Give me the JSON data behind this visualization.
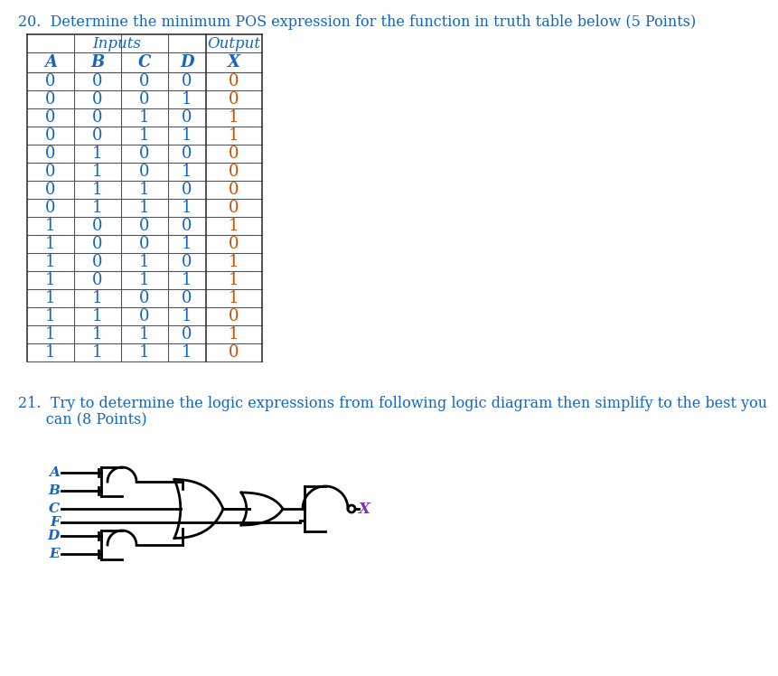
{
  "title_q20": "20.  Determine the minimum POS expression for the function in truth table below (5 Points)",
  "title_q21_line1": "21.  Try to determine the logic expressions from following logic diagram then simplify to the best you",
  "title_q21_line2": "      can (8 Points)",
  "table_headers": [
    "A",
    "B",
    "C",
    "D",
    "X"
  ],
  "table_group_header_inputs": "Inputs",
  "table_group_header_output": "Output",
  "truth_table": [
    [
      0,
      0,
      0,
      0,
      0
    ],
    [
      0,
      0,
      0,
      1,
      0
    ],
    [
      0,
      0,
      1,
      0,
      1
    ],
    [
      0,
      0,
      1,
      1,
      1
    ],
    [
      0,
      1,
      0,
      0,
      0
    ],
    [
      0,
      1,
      0,
      1,
      0
    ],
    [
      0,
      1,
      1,
      0,
      0
    ],
    [
      0,
      1,
      1,
      1,
      0
    ],
    [
      1,
      0,
      0,
      0,
      1
    ],
    [
      1,
      0,
      0,
      1,
      0
    ],
    [
      1,
      0,
      1,
      0,
      1
    ],
    [
      1,
      0,
      1,
      1,
      1
    ],
    [
      1,
      1,
      0,
      0,
      1
    ],
    [
      1,
      1,
      0,
      1,
      0
    ],
    [
      1,
      1,
      1,
      0,
      1
    ],
    [
      1,
      1,
      1,
      1,
      0
    ]
  ],
  "text_color_blue": "#1565C0",
  "text_color_orange": "#C85000",
  "text_color_purple": "#7B2FBE",
  "text_color_black": "#000000",
  "bg_color": "#FFFFFF",
  "font_size_title": 11.5,
  "font_size_table_header": 13,
  "font_size_table_data": 13,
  "font_size_gate_label": 11
}
